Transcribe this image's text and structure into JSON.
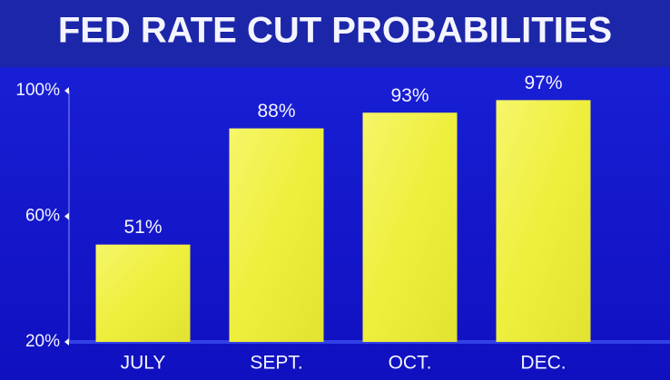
{
  "chart_data": {
    "type": "bar",
    "title": "FED RATE CUT PROBABILITIES",
    "categories": [
      "JULY",
      "SEPT.",
      "OCT.",
      "DEC."
    ],
    "values": [
      51,
      88,
      93,
      97
    ],
    "value_labels": [
      "51%",
      "88%",
      "93%",
      "97%"
    ],
    "color": "#eeee3a",
    "ylim": [
      20,
      100
    ],
    "yticks": [
      {
        "value": 20,
        "label": "20%"
      },
      {
        "value": 60,
        "label": "60%"
      },
      {
        "value": 100,
        "label": "100%"
      }
    ]
  }
}
